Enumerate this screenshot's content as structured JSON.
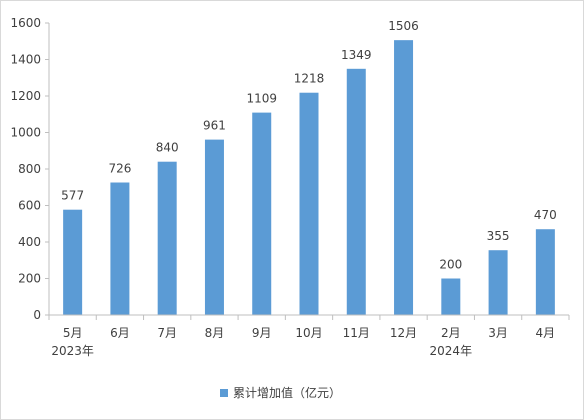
{
  "chart_data": {
    "type": "bar",
    "categories": [
      "5月",
      "6月",
      "7月",
      "8月",
      "9月",
      "10月",
      "11月",
      "12月",
      "2月",
      "3月",
      "4月"
    ],
    "year_labels": [
      {
        "index": 0,
        "text": "2023年"
      },
      {
        "index": 8,
        "text": "2024年"
      }
    ],
    "series": [
      {
        "name": "累计增加值（亿元）",
        "color": "#5b9bd5",
        "values": [
          577,
          726,
          840,
          961,
          1109,
          1218,
          1349,
          1506,
          200,
          355,
          470
        ]
      }
    ],
    "ylim": [
      0,
      1600
    ],
    "yticks": [
      0,
      200,
      400,
      600,
      800,
      1000,
      1200,
      1400,
      1600
    ],
    "grid": false,
    "legend": "bottom",
    "data_labels": true
  }
}
